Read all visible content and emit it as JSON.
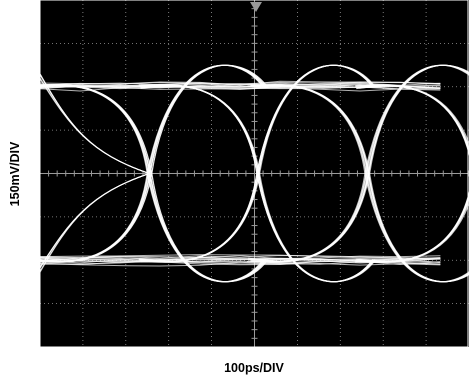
{
  "chart_data": {
    "type": "line",
    "title": "",
    "xlabel": "100ps/DIV",
    "ylabel": "150mV/DIV",
    "grid": true,
    "x_divisions": 10,
    "y_divisions": 8,
    "unit_interval_divisions": 4.55,
    "levels": {
      "high_div": 2.0,
      "low_div": -2.0,
      "crossing_div": 0.0
    },
    "overshoot_div": 0.85,
    "crossings_x_div": [
      2.55,
      5.1,
      7.63,
      10.15
    ],
    "trigger_marker": "down-triangle",
    "colors": {
      "screen": "#000000",
      "trace": "#ffffff",
      "grid": "#9a9a9a",
      "frame": "#ffffff"
    }
  }
}
